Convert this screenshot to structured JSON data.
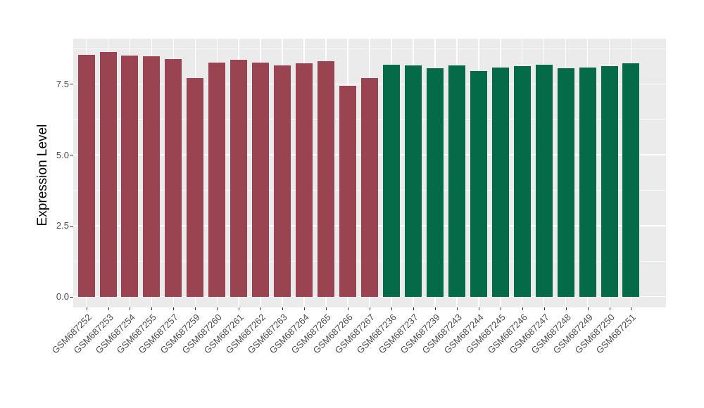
{
  "figure": {
    "background_color": "#FFFFFF",
    "panel_background_color": "#EBEBEB",
    "grid_color": "#FFFFFF",
    "axis_text_color": "#4D4D4D",
    "axis_title_color": "#000000",
    "group_colors": {
      "left_group": "#9A4452",
      "right_group": "#056A47"
    }
  },
  "chart_data": {
    "type": "bar",
    "title": "",
    "xlabel": "",
    "ylabel": "Expression Level",
    "ylim": [
      -0.38,
      9.1
    ],
    "ytick_values": [
      0,
      2.5,
      5,
      7.5
    ],
    "ytick_labels": [
      "0.0",
      "2.5",
      "5.0",
      "7.5"
    ],
    "minor_gridline_values": [
      1.25,
      3.75,
      6.25,
      8.75
    ],
    "grid": true,
    "legend_position": "none",
    "bar_width_fraction": 0.75,
    "bars": [
      {
        "label": "GSM687252",
        "value": 8.53,
        "color": "#9A4452"
      },
      {
        "label": "GSM687253",
        "value": 8.63,
        "color": "#9A4452"
      },
      {
        "label": "GSM687254",
        "value": 8.5,
        "color": "#9A4452"
      },
      {
        "label": "GSM687255",
        "value": 8.48,
        "color": "#9A4452"
      },
      {
        "label": "GSM687257",
        "value": 8.38,
        "color": "#9A4452"
      },
      {
        "label": "GSM687259",
        "value": 7.71,
        "color": "#9A4452"
      },
      {
        "label": "GSM687260",
        "value": 8.25,
        "color": "#9A4452"
      },
      {
        "label": "GSM687261",
        "value": 8.35,
        "color": "#9A4452"
      },
      {
        "label": "GSM687262",
        "value": 8.25,
        "color": "#9A4452"
      },
      {
        "label": "GSM687263",
        "value": 8.15,
        "color": "#9A4452"
      },
      {
        "label": "GSM687264",
        "value": 8.24,
        "color": "#9A4452"
      },
      {
        "label": "GSM687265",
        "value": 8.3,
        "color": "#9A4452"
      },
      {
        "label": "GSM687266",
        "value": 7.43,
        "color": "#9A4452"
      },
      {
        "label": "GSM687267",
        "value": 7.71,
        "color": "#9A4452"
      },
      {
        "label": "GSM687236",
        "value": 8.19,
        "color": "#056A47"
      },
      {
        "label": "GSM687237",
        "value": 8.16,
        "color": "#056A47"
      },
      {
        "label": "GSM687239",
        "value": 8.06,
        "color": "#056A47"
      },
      {
        "label": "GSM687243",
        "value": 8.15,
        "color": "#056A47"
      },
      {
        "label": "GSM687244",
        "value": 7.95,
        "color": "#056A47"
      },
      {
        "label": "GSM687245",
        "value": 8.09,
        "color": "#056A47"
      },
      {
        "label": "GSM687246",
        "value": 8.12,
        "color": "#056A47"
      },
      {
        "label": "GSM687247",
        "value": 8.19,
        "color": "#056A47"
      },
      {
        "label": "GSM687248",
        "value": 8.05,
        "color": "#056A47"
      },
      {
        "label": "GSM687249",
        "value": 8.09,
        "color": "#056A47"
      },
      {
        "label": "GSM687250",
        "value": 8.14,
        "color": "#056A47"
      },
      {
        "label": "GSM687251",
        "value": 8.24,
        "color": "#056A47"
      }
    ]
  }
}
